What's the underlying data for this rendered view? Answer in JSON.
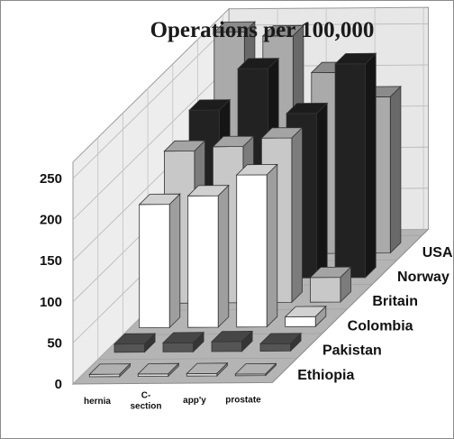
{
  "chart_data": {
    "type": "bar",
    "subtype": "3d-column",
    "title": "Operations per 100,000",
    "categories": [
      "hernia",
      "C-section",
      "app'y",
      "prostate"
    ],
    "yticks": [
      "0",
      "50",
      "100",
      "150",
      "200",
      "250"
    ],
    "ylim": [
      0,
      250
    ],
    "grid": true,
    "legend": "series names shown along the depth axis on the right",
    "series": [
      {
        "name": "Ethiopia",
        "color": "#d8d8d8",
        "values": [
          3,
          3,
          3,
          2
        ]
      },
      {
        "name": "Pakistan",
        "color": "#555555",
        "values": [
          10,
          11,
          12,
          9
        ]
      },
      {
        "name": "Colombia",
        "color": "#ffffff",
        "values": [
          150,
          160,
          185,
          12
        ]
      },
      {
        "name": "Britain",
        "color": "#c8c8c8",
        "values": [
          185,
          190,
          200,
          30
        ]
      },
      {
        "name": "Norway",
        "color": "#222222",
        "values": [
          205,
          255,
          200,
          260
        ]
      },
      {
        "name": "USA",
        "color": "#aaaaaa",
        "values": [
          270,
          265,
          220,
          190
        ]
      }
    ]
  }
}
